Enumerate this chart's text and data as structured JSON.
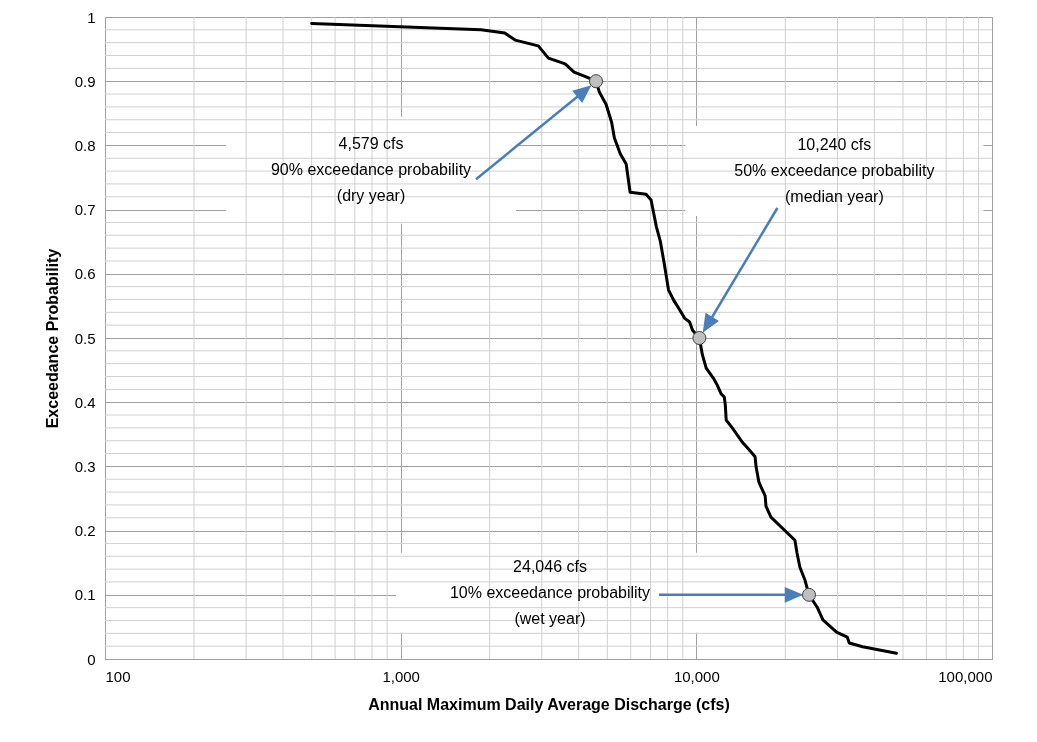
{
  "chart_data": {
    "type": "line",
    "xlabel": "Annual Maximum Daily Average Discharge (cfs)",
    "ylabel": "Exceedance Probability",
    "log": "x",
    "grid": true,
    "xlim": [
      100,
      100000
    ],
    "xticks": [
      100,
      {
        "value": 1000,
        "label": "1,000"
      },
      {
        "value": 10000,
        "label": "10,000"
      },
      {
        "value": 100000,
        "label": "100,000"
      }
    ],
    "ylim": [
      0,
      1
    ],
    "yticks": [
      0,
      0.1,
      0.2,
      0.3,
      0.4,
      0.5,
      0.6,
      0.7,
      0.8,
      0.9,
      1
    ],
    "series": [
      {
        "color": "#000000",
        "marker": "none",
        "x": [
          500,
          1870,
          2250,
          2440,
          2920,
          3160,
          3600,
          3860,
          4220,
          4579,
          4700,
          4950,
          5170,
          5280,
          5530,
          5790,
          5970,
          6760,
          7030,
          7320,
          7560,
          7800,
          8050,
          8380,
          8780,
          9120,
          9490,
          9710,
          10240,
          10480,
          10800,
          11400,
          11760,
          12130,
          12430,
          12530,
          12620,
          13230,
          14290,
          15090,
          15800,
          15930,
          16270,
          16620,
          17090,
          17200,
          17880,
          21550,
          21900,
          22400,
          23300,
          24046,
          25600,
          26800,
          29800,
          32400,
          32900,
          36500,
          47500
        ],
        "values": [
          0.99,
          0.98,
          0.975,
          0.964,
          0.955,
          0.936,
          0.927,
          0.914,
          0.907,
          0.9,
          0.883,
          0.864,
          0.836,
          0.812,
          0.787,
          0.771,
          0.727,
          0.724,
          0.715,
          0.674,
          0.65,
          0.614,
          0.575,
          0.559,
          0.544,
          0.531,
          0.525,
          0.512,
          0.5,
          0.474,
          0.453,
          0.438,
          0.427,
          0.413,
          0.408,
          0.396,
          0.372,
          0.36,
          0.338,
          0.326,
          0.315,
          0.299,
          0.276,
          0.266,
          0.254,
          0.238,
          0.221,
          0.185,
          0.165,
          0.143,
          0.123,
          0.1,
          0.081,
          0.061,
          0.042,
          0.034,
          0.025,
          0.019,
          0.009
        ]
      },
      {
        "type": "scatter",
        "color": "#bfbfbf",
        "marker": "circle",
        "x": [
          4579,
          10240,
          24046
        ],
        "values": [
          0.9,
          0.5,
          0.1
        ]
      }
    ],
    "annotations": [
      "4,579 cfs\n90% exceedance probability\n(dry year)",
      "10,240 cfs\n50% exceedance probability\n(median year)",
      "24,046 cfs\n10% exceedance probability\n(wet year)"
    ]
  }
}
